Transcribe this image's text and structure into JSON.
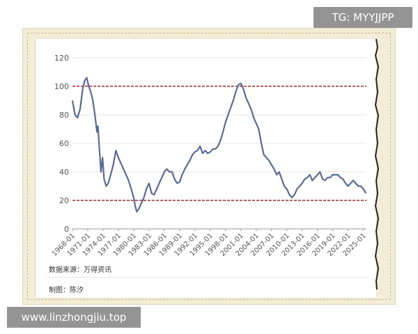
{
  "watermark_top": "TG: MYYJJPP",
  "watermark_bottom": "www.linzhongjiu.top",
  "source": "数据来源：万得资讯",
  "maker": "制图：陈汐",
  "colors": {
    "series": "#5a6a93",
    "reference_line": "#a52a2a",
    "gridline": "#e6e6e6",
    "axis_text": "#555555",
    "frame": "#f3ecd6"
  },
  "chart_data": {
    "type": "line",
    "title": "",
    "xlabel": "",
    "ylabel": "",
    "ylim": [
      0,
      120
    ],
    "yticks": [
      0,
      20,
      40,
      60,
      80,
      100,
      120
    ],
    "xticks": [
      "1968-01",
      "1971-01",
      "1974-01",
      "1977-01",
      "1980-01",
      "1983-01",
      "1986-01",
      "1989-01",
      "1992-01",
      "1995-01",
      "1998-01",
      "2001-01",
      "2004-01",
      "2007-01",
      "2010-01",
      "2013-01",
      "2016-01",
      "2019-01",
      "2022-01",
      "2025-01"
    ],
    "grid": true,
    "legend": "none",
    "reference_lines": [
      100,
      20
    ],
    "series": [
      {
        "x": [
          1968.0,
          1968.5,
          1969.0,
          1969.5,
          1970.0,
          1970.4,
          1970.8,
          1971.2,
          1971.6,
          1972.0,
          1972.4,
          1972.8,
          1973.0,
          1973.3,
          1973.6,
          1973.9,
          1974.2,
          1974.6,
          1975.0,
          1975.5,
          1976.0,
          1976.5,
          1977.0,
          1977.5,
          1978.0,
          1978.5,
          1979.0,
          1979.5,
          1980.0,
          1980.3,
          1980.6,
          1981.0,
          1981.5,
          1982.0,
          1982.5,
          1983.0,
          1983.5,
          1984.0,
          1984.5,
          1985.0,
          1985.5,
          1986.0,
          1986.5,
          1987.0,
          1987.5,
          1988.0,
          1988.5,
          1989.0,
          1989.5,
          1990.0,
          1990.5,
          1991.0,
          1991.5,
          1992.0,
          1992.5,
          1993.0,
          1993.5,
          1994.0,
          1994.5,
          1995.0,
          1995.5,
          1996.0,
          1996.5,
          1997.0,
          1997.5,
          1998.0,
          1998.5,
          1999.0,
          1999.5,
          2000.0,
          2000.5,
          2001.0,
          2001.5,
          2002.0,
          2002.5,
          2003.0,
          2003.5,
          2004.0,
          2004.5,
          2005.0,
          2005.5,
          2006.0,
          2006.5,
          2007.0,
          2007.5,
          2008.0,
          2008.5,
          2009.0,
          2009.5,
          2010.0,
          2010.5,
          2011.0,
          2011.5,
          2012.0,
          2012.5,
          2013.0,
          2013.5,
          2014.0,
          2014.5,
          2015.0,
          2015.5,
          2016.0,
          2016.5,
          2017.0,
          2017.5,
          2018.0,
          2018.5,
          2019.0,
          2019.5,
          2020.0,
          2020.5,
          2021.0,
          2021.5,
          2022.0,
          2022.5,
          2023.0,
          2023.5,
          2024.0,
          2024.5,
          2025.0,
          2025.5
        ],
        "values": [
          90,
          80,
          78,
          84,
          98,
          104,
          106,
          100,
          96,
          90,
          80,
          68,
          72,
          55,
          40,
          50,
          35,
          30,
          32,
          38,
          45,
          55,
          50,
          46,
          42,
          38,
          34,
          28,
          22,
          16,
          12,
          14,
          18,
          22,
          28,
          32,
          25,
          24,
          28,
          32,
          36,
          40,
          42,
          40,
          40,
          35,
          32,
          33,
          38,
          42,
          45,
          48,
          52,
          54,
          55,
          58,
          53,
          55,
          53,
          54,
          56,
          56,
          58,
          62,
          68,
          75,
          80,
          85,
          90,
          96,
          101,
          102,
          98,
          92,
          88,
          84,
          78,
          74,
          70,
          60,
          52,
          50,
          48,
          45,
          42,
          38,
          40,
          35,
          30,
          28,
          24,
          22,
          24,
          28,
          30,
          32,
          35,
          36,
          38,
          34,
          36,
          38,
          40,
          35,
          34,
          36,
          36,
          38,
          38,
          38,
          36,
          35,
          32,
          30,
          32,
          34,
          32,
          30,
          30,
          28,
          25
        ]
      }
    ]
  }
}
